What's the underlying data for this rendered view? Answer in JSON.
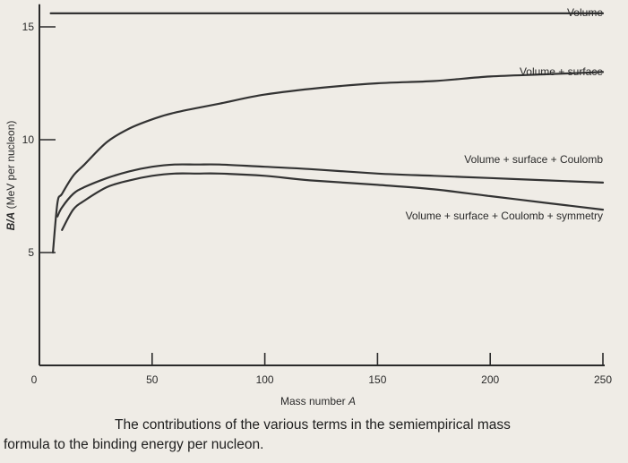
{
  "chart_data": {
    "type": "line",
    "xlabel": "Mass number",
    "xlabel_var": "A",
    "ylabel": "B/A (MeV per nucleon)",
    "ylabel_var": "B/A",
    "ylabel_rest": " (MeV per nucleon)",
    "xlim": [
      0,
      250
    ],
    "ylim": [
      0,
      16
    ],
    "xticks": [
      0,
      50,
      100,
      150,
      200,
      250
    ],
    "yticks": [
      5,
      10,
      15
    ],
    "grid": false,
    "series": [
      {
        "name": "Volume",
        "x": [
          5,
          50,
          100,
          150,
          200,
          250
        ],
        "y": [
          15.6,
          15.6,
          15.6,
          15.6,
          15.6,
          15.6
        ]
      },
      {
        "name": "Volume + surface",
        "x": [
          6,
          8,
          10,
          15,
          20,
          30,
          40,
          50,
          60,
          80,
          100,
          125,
          150,
          175,
          200,
          225,
          250
        ],
        "y": [
          5.0,
          7.2,
          7.6,
          8.4,
          8.9,
          9.9,
          10.5,
          10.9,
          11.2,
          11.6,
          12.0,
          12.3,
          12.5,
          12.6,
          12.8,
          12.9,
          13.0
        ]
      },
      {
        "name": "Volume + surface + Coulomb",
        "x": [
          8,
          10,
          15,
          20,
          30,
          40,
          50,
          60,
          70,
          80,
          100,
          120,
          150,
          175,
          200,
          225,
          250
        ],
        "y": [
          6.6,
          7.0,
          7.6,
          7.9,
          8.3,
          8.6,
          8.8,
          8.9,
          8.9,
          8.9,
          8.8,
          8.7,
          8.5,
          8.4,
          8.3,
          8.2,
          8.1
        ]
      },
      {
        "name": "Volume + surface + Coulomb + symmetry",
        "x": [
          10,
          15,
          20,
          30,
          40,
          50,
          60,
          70,
          80,
          100,
          120,
          150,
          175,
          200,
          225,
          250
        ],
        "y": [
          6.0,
          6.9,
          7.3,
          7.9,
          8.2,
          8.4,
          8.5,
          8.5,
          8.5,
          8.4,
          8.2,
          8.0,
          7.8,
          7.5,
          7.2,
          6.9
        ]
      }
    ]
  },
  "caption": {
    "line1": "The contributions of the various terms in the semiempirical mass",
    "line2": "formula to the binding energy per nucleon."
  },
  "colors": {
    "background": "#efece6",
    "ink": "#2a2a2a"
  }
}
